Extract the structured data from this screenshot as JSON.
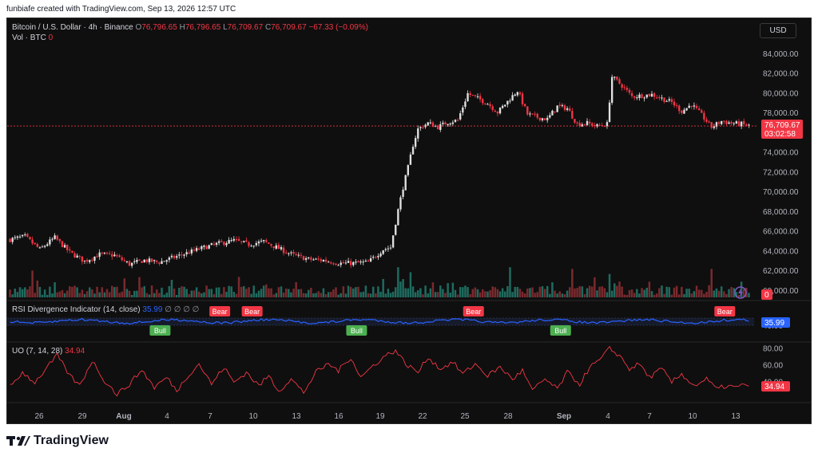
{
  "caption": "funbiafe created with TradingView.com, Sep 13, 2026 12:57 UTC",
  "legend": {
    "symbol": "Bitcoin / U.S. Dollar · 4h · Binance",
    "open_label": "O",
    "open": "76,796.65",
    "high_label": "H",
    "high": "76,796.65",
    "low_label": "L",
    "low": "76,709.67",
    "close_label": "C",
    "close": "76,709.67",
    "change": "−67.33 (−0.09%)",
    "vol_label": "Vol · BTC",
    "vol_value": "0"
  },
  "currency": "USD",
  "rsi_legend": {
    "title": "RSI Divergence Indicator (14, close)",
    "value": "35.99",
    "na": "∅ ∅ ∅ ∅"
  },
  "uo_legend": {
    "title": "UO (7, 14, 28)",
    "value": "34.94"
  },
  "brand": "TradingView",
  "colors": {
    "up": "#e0e0e0",
    "down": "#f23645",
    "vol_up": "#1f6b5f",
    "vol_down": "#7a2a2e",
    "rsi": "#2962ff",
    "uo": "#f23645",
    "bull": "#4caf50",
    "bear": "#f23645"
  },
  "chart_data": [
    {
      "type": "candlestick",
      "title": "Bitcoin / U.S. Dollar · 4h · Binance",
      "x_ticks": [
        "26",
        "29",
        "Aug",
        "4",
        "7",
        "10",
        "13",
        "16",
        "19",
        "22",
        "25",
        "28",
        "Sep",
        "4",
        "7",
        "10",
        "13"
      ],
      "y_ticks": [
        "84,000.00",
        "82,000.00",
        "80,000.00",
        "78,000.00",
        "76,000.00",
        "74,000.00",
        "72,000.00",
        "70,000.00",
        "68,000.00",
        "66,000.00",
        "64,000.00",
        "62,000.00",
        "60,000.00"
      ],
      "ylim": [
        59500,
        85200
      ],
      "last_price": "76,709.67",
      "countdown": "03:02:58",
      "close_path": [
        [
          0,
          65200
        ],
        [
          6,
          65500
        ],
        [
          12,
          64200
        ],
        [
          18,
          65400
        ],
        [
          24,
          63900
        ],
        [
          30,
          63000
        ],
        [
          36,
          63700
        ],
        [
          42,
          63600
        ],
        [
          48,
          62700
        ],
        [
          54,
          63100
        ],
        [
          60,
          62900
        ],
        [
          66,
          63400
        ],
        [
          72,
          63900
        ],
        [
          78,
          64400
        ],
        [
          84,
          64800
        ],
        [
          90,
          65100
        ],
        [
          96,
          64700
        ],
        [
          102,
          65000
        ],
        [
          108,
          64300
        ],
        [
          114,
          63600
        ],
        [
          120,
          63200
        ],
        [
          126,
          63100
        ],
        [
          132,
          62800
        ],
        [
          138,
          62800
        ],
        [
          144,
          62900
        ],
        [
          150,
          64200
        ],
        [
          153,
          64400
        ],
        [
          156,
          68200
        ],
        [
          158,
          70500
        ],
        [
          160,
          72500
        ],
        [
          162,
          74800
        ],
        [
          164,
          76400
        ],
        [
          168,
          77000
        ],
        [
          172,
          76600
        ],
        [
          176,
          77100
        ],
        [
          180,
          77300
        ],
        [
          184,
          80000
        ],
        [
          188,
          79500
        ],
        [
          192,
          79000
        ],
        [
          196,
          78100
        ],
        [
          200,
          79200
        ],
        [
          204,
          80300
        ],
        [
          208,
          77900
        ],
        [
          212,
          77600
        ],
        [
          216,
          77400
        ],
        [
          220,
          78700
        ],
        [
          224,
          78500
        ],
        [
          228,
          76900
        ],
        [
          232,
          77000
        ],
        [
          236,
          76700
        ],
        [
          240,
          76900
        ],
        [
          242,
          81700
        ],
        [
          246,
          80800
        ],
        [
          250,
          79700
        ],
        [
          254,
          79800
        ],
        [
          258,
          79900
        ],
        [
          262,
          79500
        ],
        [
          266,
          79100
        ],
        [
          270,
          78200
        ],
        [
          274,
          78900
        ],
        [
          278,
          77800
        ],
        [
          282,
          76600
        ],
        [
          286,
          77200
        ],
        [
          290,
          77000
        ],
        [
          294,
          76900
        ],
        [
          297,
          76710
        ]
      ],
      "volume_spikes": [
        [
          9,
          0.8
        ],
        [
          150,
          0.55
        ],
        [
          156,
          0.9
        ],
        [
          161,
          0.75
        ],
        [
          170,
          0.45
        ],
        [
          183,
          0.35
        ],
        [
          201,
          0.9
        ],
        [
          218,
          0.45
        ],
        [
          226,
          0.85
        ],
        [
          235,
          0.6
        ],
        [
          241,
          0.7
        ],
        [
          282,
          0.85
        ]
      ]
    },
    {
      "type": "line",
      "title": "RSI Divergence Indicator (14, close)",
      "y_ticks": [
        "40.00"
      ],
      "last_value": "35.99",
      "signals": [
        {
          "label": "Bull",
          "x": 60
        },
        {
          "label": "Bear",
          "x": 84
        },
        {
          "label": "Bear",
          "x": 97
        },
        {
          "label": "Bull",
          "x": 139
        },
        {
          "label": "Bear",
          "x": 186
        },
        {
          "label": "Bull",
          "x": 221
        },
        {
          "label": "Bear",
          "x": 287
        }
      ]
    },
    {
      "type": "line",
      "title": "UO (7, 14, 28)",
      "y_ticks": [
        "80.00",
        "60.00",
        "40.00"
      ],
      "ylim": [
        18,
        86
      ],
      "last_value": "34.94",
      "path": [
        [
          0,
          35
        ],
        [
          5,
          52
        ],
        [
          10,
          40
        ],
        [
          15,
          58
        ],
        [
          19,
          72
        ],
        [
          24,
          48
        ],
        [
          28,
          36
        ],
        [
          33,
          66
        ],
        [
          38,
          42
        ],
        [
          43,
          26
        ],
        [
          48,
          38
        ],
        [
          53,
          55
        ],
        [
          58,
          34
        ],
        [
          63,
          46
        ],
        [
          67,
          30
        ],
        [
          72,
          50
        ],
        [
          76,
          62
        ],
        [
          81,
          38
        ],
        [
          86,
          58
        ],
        [
          90,
          40
        ],
        [
          95,
          52
        ],
        [
          100,
          36
        ],
        [
          104,
          48
        ],
        [
          108,
          30
        ],
        [
          113,
          44
        ],
        [
          118,
          28
        ],
        [
          123,
          52
        ],
        [
          128,
          62
        ],
        [
          132,
          54
        ],
        [
          137,
          70
        ],
        [
          141,
          46
        ],
        [
          146,
          60
        ],
        [
          151,
          72
        ],
        [
          155,
          78
        ],
        [
          159,
          62
        ],
        [
          164,
          52
        ],
        [
          168,
          70
        ],
        [
          173,
          56
        ],
        [
          178,
          64
        ],
        [
          182,
          50
        ],
        [
          187,
          62
        ],
        [
          192,
          48
        ],
        [
          197,
          58
        ],
        [
          202,
          44
        ],
        [
          206,
          54
        ],
        [
          210,
          30
        ],
        [
          215,
          44
        ],
        [
          220,
          32
        ],
        [
          224,
          52
        ],
        [
          229,
          38
        ],
        [
          233,
          58
        ],
        [
          237,
          66
        ],
        [
          241,
          80
        ],
        [
          245,
          72
        ],
        [
          249,
          56
        ],
        [
          253,
          62
        ],
        [
          257,
          46
        ],
        [
          262,
          56
        ],
        [
          266,
          40
        ],
        [
          270,
          50
        ],
        [
          275,
          36
        ],
        [
          280,
          44
        ],
        [
          284,
          32
        ],
        [
          288,
          36
        ],
        [
          292,
          34
        ],
        [
          296,
          38
        ],
        [
          298,
          34.94
        ]
      ]
    }
  ]
}
